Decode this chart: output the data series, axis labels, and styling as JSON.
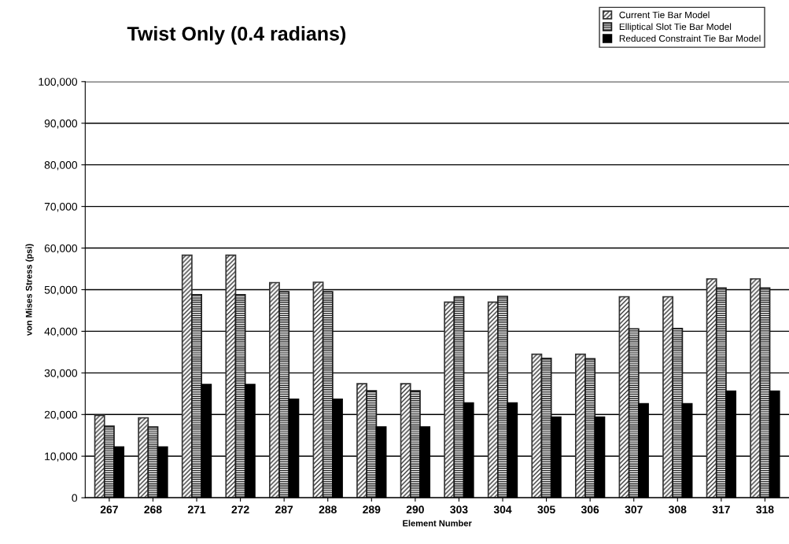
{
  "chart_data": {
    "type": "bar",
    "title": "Twist Only (0.4 radians)",
    "xlabel": "Element Number",
    "ylabel": "von Mises Stress (psi)",
    "categories": [
      "267",
      "268",
      "271",
      "272",
      "287",
      "288",
      "289",
      "290",
      "303",
      "304",
      "305",
      "306",
      "307",
      "308",
      "317",
      "318"
    ],
    "series": [
      {
        "name": "Current Tie Bar Model",
        "color": "#333333",
        "values": [
          19800,
          19200,
          58300,
          58300,
          51700,
          51800,
          27400,
          27400,
          47000,
          47000,
          34500,
          34500,
          48300,
          48300,
          52600,
          52600
        ]
      },
      {
        "name": "Elliptical Slot Tie Bar Model",
        "color": "#1a1a1a",
        "values": [
          17200,
          17000,
          48800,
          48800,
          49500,
          49500,
          25700,
          25700,
          48300,
          48400,
          33500,
          33400,
          40600,
          40700,
          50400,
          50400
        ]
      },
      {
        "name": "Reduced Constraint Tie Bar Model",
        "color": "#000000",
        "values": [
          12200,
          12200,
          27200,
          27200,
          23700,
          23700,
          17000,
          17000,
          22800,
          22800,
          19400,
          19400,
          22600,
          22600,
          25600,
          25600
        ]
      }
    ],
    "ylim": [
      0,
      100000
    ],
    "yticks": [
      {
        "value": 0,
        "label": "0"
      },
      {
        "value": 10000,
        "label": "10,000"
      },
      {
        "value": 20000,
        "label": "20,000"
      },
      {
        "value": 30000,
        "label": "30,000"
      },
      {
        "value": 40000,
        "label": "40,000"
      },
      {
        "value": 50000,
        "label": "50,000"
      },
      {
        "value": 60000,
        "label": "60,000"
      },
      {
        "value": 70000,
        "label": "70,000"
      },
      {
        "value": 80000,
        "label": "80,000"
      },
      {
        "value": 90000,
        "label": "90,000"
      },
      {
        "value": 100000,
        "label": "100,000"
      }
    ],
    "grid": "y",
    "legend": "top right"
  }
}
